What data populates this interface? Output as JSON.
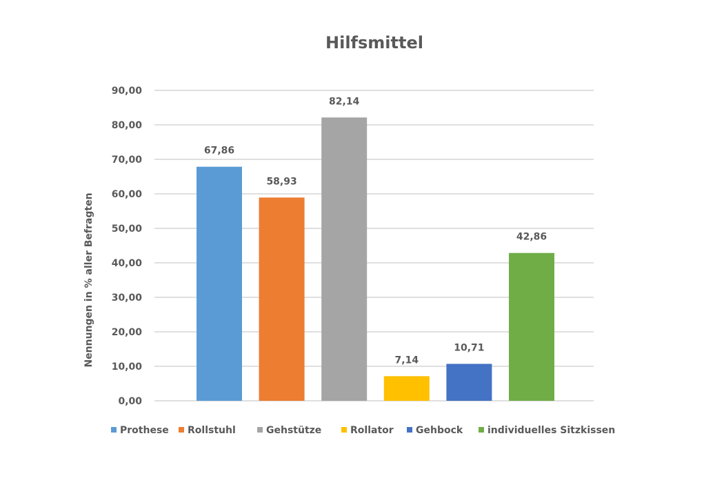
{
  "chart_data": {
    "type": "bar",
    "title": "Hilfsmittel",
    "xlabel": "",
    "ylabel": "Nennungen in % aller Befragten",
    "ylim": [
      0,
      90
    ],
    "yticks": [
      "0,00",
      "10,00",
      "20,00",
      "30,00",
      "40,00",
      "50,00",
      "60,00",
      "70,00",
      "80,00",
      "90,00"
    ],
    "grid": true,
    "legend_position": "bottom",
    "series": [
      {
        "name": "Prothese",
        "value": 67.86,
        "label": "67,86",
        "color": "#5b9bd5"
      },
      {
        "name": "Rollstuhl",
        "value": 58.93,
        "label": "58,93",
        "color": "#ed7d31"
      },
      {
        "name": "Gehstütze",
        "value": 82.14,
        "label": "82,14",
        "color": "#a5a5a5"
      },
      {
        "name": "Rollator",
        "value": 7.14,
        "label": "7,14",
        "color": "#ffc000"
      },
      {
        "name": "Gehbock",
        "value": 10.71,
        "label": "10,71",
        "color": "#4472c4"
      },
      {
        "name": "individuelles Sitzkissen",
        "value": 42.86,
        "label": "42,86",
        "color": "#70ad47"
      }
    ]
  }
}
